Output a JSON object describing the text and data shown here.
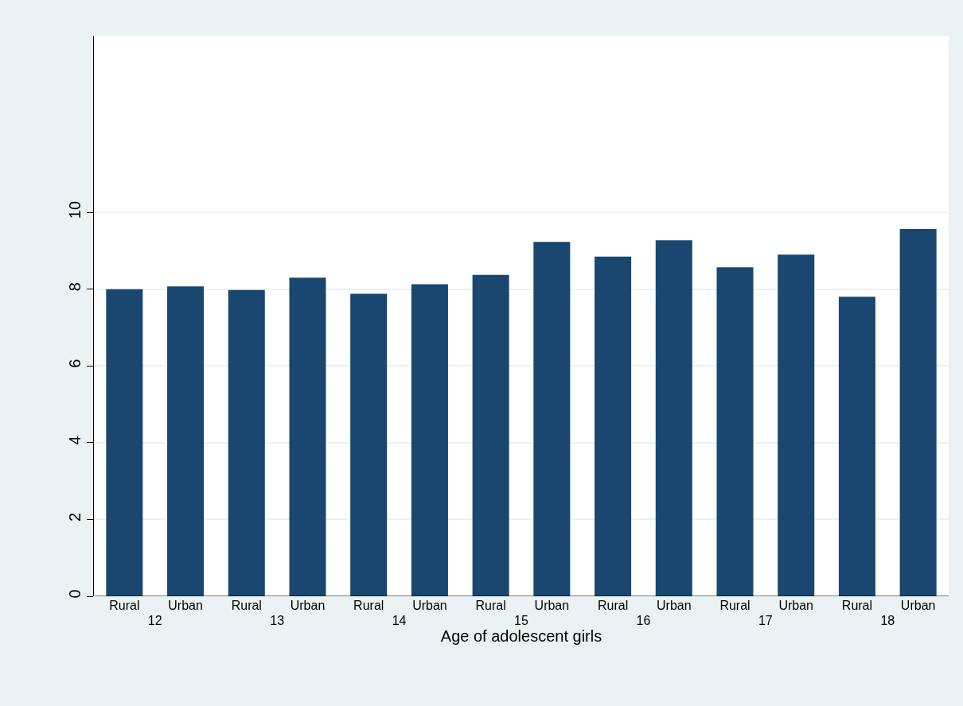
{
  "chart_data": {
    "type": "bar",
    "xlabel": "Age of adolescent girls",
    "categories": [
      "12",
      "13",
      "14",
      "15",
      "16",
      "17",
      "18"
    ],
    "series": [
      {
        "name": "Rural",
        "color": "#1a476f",
        "values": [
          8.0,
          7.98,
          7.88,
          8.37,
          8.85,
          8.57,
          7.8
        ]
      },
      {
        "name": "Urban",
        "color": "#1a476f",
        "values": [
          8.07,
          8.3,
          8.13,
          9.23,
          9.27,
          8.9,
          9.57
        ]
      }
    ],
    "ylim": [
      0,
      14.6
    ],
    "yticks": [
      0,
      2,
      4,
      6,
      8,
      10
    ],
    "grid": "y"
  }
}
